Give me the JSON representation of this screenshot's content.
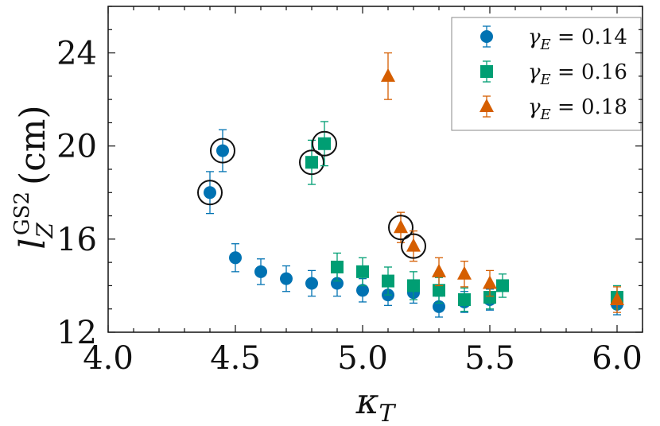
{
  "chart_data": {
    "type": "scatter",
    "xlabel": "κT",
    "ylabel": "lZ^GS2 (cm)",
    "xlim": [
      4.0,
      6.1
    ],
    "ylim": [
      12,
      26
    ],
    "xticks": [
      4.0,
      4.5,
      5.0,
      5.5,
      6.0
    ],
    "xtick_labels": [
      "4.0",
      "4.5",
      "5.0",
      "5.5",
      "6.0"
    ],
    "yticks": [
      12,
      16,
      20,
      24
    ],
    "ytick_labels": [
      "12",
      "16",
      "20",
      "24"
    ],
    "grid": false,
    "legend_position": "top-right",
    "series": [
      {
        "name": "γE = 0.14",
        "legend_label": "γE = 0.14",
        "color": "#0072B2",
        "marker": "circle",
        "points": [
          {
            "x": 4.4,
            "y": 18.0,
            "err": 0.9,
            "circled": true
          },
          {
            "x": 4.45,
            "y": 19.8,
            "err": 0.9,
            "circled": true
          },
          {
            "x": 4.5,
            "y": 15.2,
            "err": 0.6
          },
          {
            "x": 4.6,
            "y": 14.6,
            "err": 0.55
          },
          {
            "x": 4.7,
            "y": 14.3,
            "err": 0.55
          },
          {
            "x": 4.8,
            "y": 14.1,
            "err": 0.55
          },
          {
            "x": 4.9,
            "y": 14.1,
            "err": 0.55
          },
          {
            "x": 5.0,
            "y": 13.8,
            "err": 0.5
          },
          {
            "x": 5.1,
            "y": 13.6,
            "err": 0.45
          },
          {
            "x": 5.2,
            "y": 13.7,
            "err": 0.45
          },
          {
            "x": 5.3,
            "y": 13.1,
            "err": 0.45
          },
          {
            "x": 5.4,
            "y": 13.3,
            "err": 0.45
          },
          {
            "x": 5.5,
            "y": 13.4,
            "err": 0.45
          },
          {
            "x": 6.0,
            "y": 13.2,
            "err": 0.45
          }
        ]
      },
      {
        "name": "γE = 0.16",
        "legend_label": "γE = 0.16",
        "color": "#009E73",
        "marker": "square",
        "points": [
          {
            "x": 4.8,
            "y": 19.3,
            "err": 0.95,
            "circled": true
          },
          {
            "x": 4.85,
            "y": 20.1,
            "err": 0.95,
            "circled": true
          },
          {
            "x": 4.9,
            "y": 14.8,
            "err": 0.6
          },
          {
            "x": 5.0,
            "y": 14.6,
            "err": 0.6
          },
          {
            "x": 5.1,
            "y": 14.2,
            "err": 0.6
          },
          {
            "x": 5.2,
            "y": 14.0,
            "err": 0.6
          },
          {
            "x": 5.3,
            "y": 13.8,
            "err": 0.55
          },
          {
            "x": 5.4,
            "y": 13.4,
            "err": 0.5
          },
          {
            "x": 5.5,
            "y": 13.5,
            "err": 0.5
          },
          {
            "x": 5.55,
            "y": 14.0,
            "err": 0.5
          },
          {
            "x": 6.0,
            "y": 13.5,
            "err": 0.5
          }
        ]
      },
      {
        "name": "γE = 0.18",
        "legend_label": "γE = 0.18",
        "color": "#D55E00",
        "marker": "triangle",
        "points": [
          {
            "x": 5.1,
            "y": 23.0,
            "err": 1.0
          },
          {
            "x": 5.15,
            "y": 16.5,
            "err": 0.65,
            "circled": true
          },
          {
            "x": 5.2,
            "y": 15.7,
            "err": 0.65,
            "circled": true
          },
          {
            "x": 5.3,
            "y": 14.6,
            "err": 0.6
          },
          {
            "x": 5.4,
            "y": 14.5,
            "err": 0.55
          },
          {
            "x": 5.5,
            "y": 14.1,
            "err": 0.55
          },
          {
            "x": 6.0,
            "y": 13.4,
            "err": 0.55
          }
        ]
      }
    ]
  }
}
